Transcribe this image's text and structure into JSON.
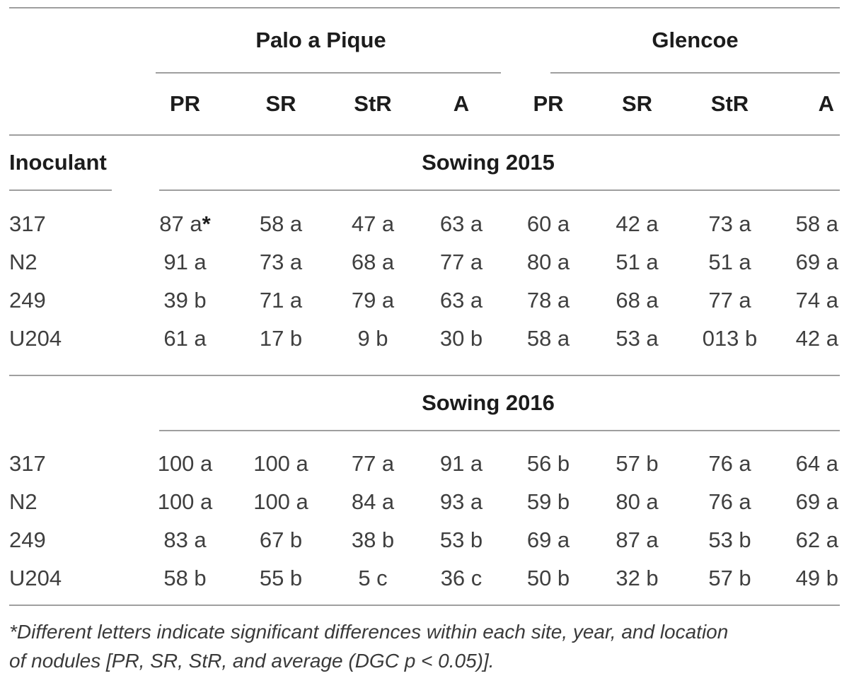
{
  "table": {
    "row_header": "Inoculant",
    "sites": [
      {
        "name": "Palo a Pique",
        "columns": [
          "PR",
          "SR",
          "StR",
          "A"
        ]
      },
      {
        "name": "Glencoe",
        "columns": [
          "PR",
          "SR",
          "StR",
          "A"
        ]
      }
    ],
    "sections": [
      {
        "title": "Sowing 2015",
        "rows": [
          {
            "label": "317",
            "marker": "*",
            "values": [
              "87 a",
              "58 a",
              "47 a",
              "63 a",
              "60 a",
              "42 a",
              "73 a",
              "58 a"
            ]
          },
          {
            "label": "N2",
            "values": [
              "91 a",
              "73 a",
              "68 a",
              "77 a",
              "80 a",
              "51 a",
              "51 a",
              "69 a"
            ]
          },
          {
            "label": "249",
            "values": [
              "39 b",
              "71 a",
              "79 a",
              "63 a",
              "78 a",
              "68 a",
              "77 a",
              "74 a"
            ]
          },
          {
            "label": "U204",
            "values": [
              "61 a",
              "17 b",
              "9 b",
              "30 b",
              "58 a",
              "53 a",
              "013 b",
              "42 a"
            ]
          }
        ]
      },
      {
        "title": "Sowing 2016",
        "rows": [
          {
            "label": "317",
            "values": [
              "100 a",
              "100 a",
              "77 a",
              "91 a",
              "56 b",
              "57 b",
              "76 a",
              "64 a"
            ]
          },
          {
            "label": "N2",
            "values": [
              "100 a",
              "100 a",
              "84 a",
              "93 a",
              "59 b",
              "80 a",
              "76 a",
              "69 a"
            ]
          },
          {
            "label": "249",
            "values": [
              "83 a",
              "67 b",
              "38 b",
              "53 b",
              "69 a",
              "87 a",
              "53 b",
              "62 a"
            ]
          },
          {
            "label": "U204",
            "values": [
              "58 b",
              "55 b",
              "5 c",
              "36 c",
              "50 b",
              "32 b",
              "57 b",
              "49 b"
            ]
          }
        ]
      }
    ],
    "footnote": {
      "line1": "*Different letters indicate significant differences within each site, year, and location",
      "line2": "of nodules [PR, SR, StR, and average (DGC p < 0.05)]."
    }
  },
  "colors": {
    "rule_gray": "#9f9f9f",
    "heading_text": "#1c1c1c",
    "body_text": "#3f3f3f",
    "background": "#ffffff"
  }
}
